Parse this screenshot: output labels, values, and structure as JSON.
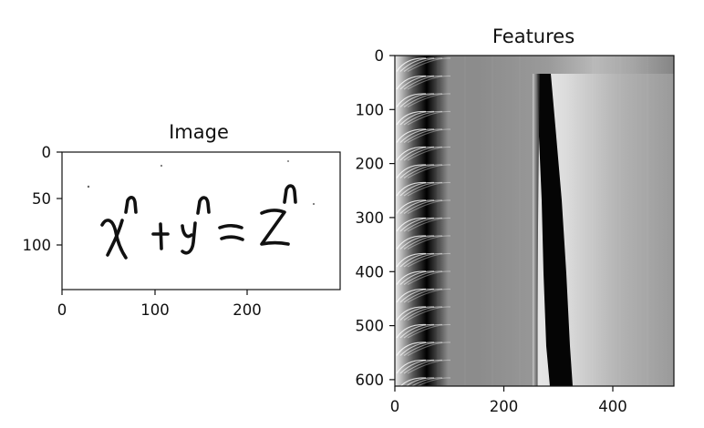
{
  "figure": {
    "panels": [
      {
        "title": "Image",
        "x_ticks": [
          "0",
          "100",
          "200"
        ],
        "y_ticks": [
          "0",
          "50",
          "100"
        ],
        "xlim": [
          0,
          300
        ],
        "ylim": [
          0,
          150
        ],
        "content": "handwritten equation x^n + y^n = z^n"
      },
      {
        "title": "Features",
        "x_ticks": [
          "0",
          "200",
          "400"
        ],
        "y_ticks": [
          "0",
          "100",
          "200",
          "300",
          "400",
          "500",
          "600"
        ],
        "xlim": [
          0,
          512
        ],
        "ylim": [
          0,
          612
        ],
        "colormap": "grayscale"
      }
    ]
  }
}
